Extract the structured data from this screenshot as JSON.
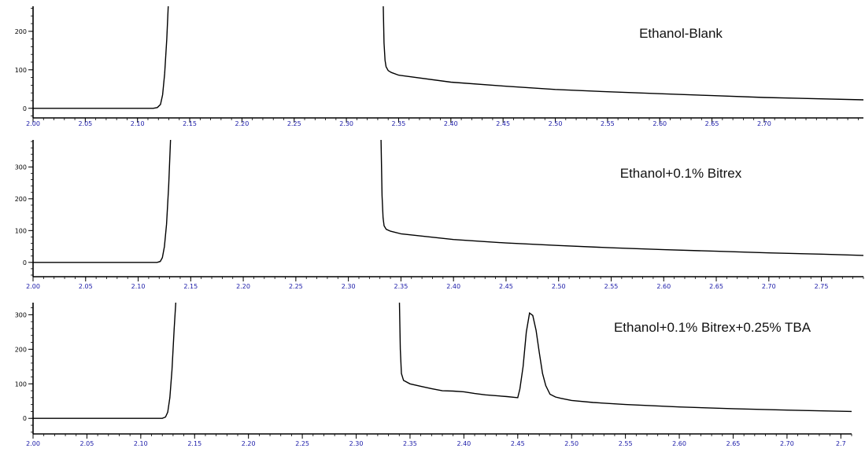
{
  "colors": {
    "trace": "#000000",
    "axis": "#000000",
    "x_tick_label": "#1a1aa8",
    "y_tick_label": "#000000",
    "background": "#ffffff"
  },
  "chart_data": [
    {
      "type": "line",
      "title": "Ethanol-Blank",
      "xlabel": "",
      "ylabel": "",
      "xlim": [
        2.0,
        2.795
      ],
      "ylim": [
        -25,
        265
      ],
      "x_ticks": [
        "2.00",
        "2.05",
        "2.10",
        "2.15",
        "2.20",
        "2.25",
        "2.30",
        "2.35",
        "2.40",
        "2.45",
        "2.50",
        "2.55",
        "2.60",
        "2.65",
        "2.70"
      ],
      "y_ticks": [
        "0",
        "100",
        "200"
      ],
      "grid": false,
      "series": [
        {
          "segments": [
            {
              "x": [
                2.0,
                2.115,
                2.119,
                2.122,
                2.124,
                2.126,
                2.128,
                2.13
              ],
              "y": [
                0,
                0,
                2,
                10,
                35,
                90,
                180,
                300
              ]
            },
            {
              "x": [
                2.335,
                2.336,
                2.337,
                2.338,
                2.34,
                2.343,
                2.35,
                2.4,
                2.45,
                2.5,
                2.55,
                2.6,
                2.65,
                2.7,
                2.795
              ],
              "y": [
                300,
                170,
                125,
                108,
                98,
                93,
                86,
                68,
                58,
                49,
                43,
                38,
                33,
                28,
                22
              ]
            }
          ]
        }
      ]
    },
    {
      "type": "line",
      "title": "Ethanol+0.1% Bitrex",
      "xlabel": "",
      "ylabel": "",
      "xlim": [
        2.0,
        2.79
      ],
      "ylim": [
        -45,
        385
      ],
      "x_ticks": [
        "2.00",
        "2.05",
        "2.10",
        "2.15",
        "2.20",
        "2.25",
        "2.30",
        "2.35",
        "2.40",
        "2.45",
        "2.50",
        "2.55",
        "2.60",
        "2.65",
        "2.70",
        "2.75"
      ],
      "y_ticks": [
        "0",
        "100",
        "200",
        "300"
      ],
      "grid": false,
      "series": [
        {
          "segments": [
            {
              "x": [
                2.0,
                2.118,
                2.121,
                2.123,
                2.125,
                2.127,
                2.129,
                2.131
              ],
              "y": [
                0,
                0,
                3,
                15,
                50,
                120,
                240,
                400
              ]
            },
            {
              "x": [
                2.331,
                2.332,
                2.333,
                2.334,
                2.336,
                2.34,
                2.35,
                2.4,
                2.45,
                2.5,
                2.55,
                2.6,
                2.65,
                2.7,
                2.75,
                2.79
              ],
              "y": [
                400,
                210,
                140,
                115,
                104,
                98,
                90,
                72,
                61,
                53,
                46,
                40,
                35,
                30,
                26,
                22
              ]
            }
          ]
        }
      ]
    },
    {
      "type": "line",
      "title": "Ethanol+0.1% Bitrex+0.25% TBA",
      "xlabel": "",
      "ylabel": "",
      "xlim": [
        2.0,
        2.76
      ],
      "ylim": [
        -45,
        335
      ],
      "x_ticks": [
        "2.00",
        "2.05",
        "2.10",
        "2.15",
        "2.20",
        "2.25",
        "2.30",
        "2.35",
        "2.40",
        "2.45",
        "2.50",
        "2.55",
        "2.60",
        "2.65",
        "2.70",
        "2.7"
      ],
      "y_ticks": [
        "0",
        "100",
        "200",
        "300"
      ],
      "grid": false,
      "series": [
        {
          "segments": [
            {
              "x": [
                2.0,
                2.12,
                2.123,
                2.125,
                2.127,
                2.129,
                2.131,
                2.133
              ],
              "y": [
                0,
                0,
                4,
                18,
                60,
                140,
                260,
                360
              ]
            },
            {
              "x": [
                2.34,
                2.341,
                2.342,
                2.344,
                2.35,
                2.36,
                2.37,
                2.38,
                2.39,
                2.4,
                2.41,
                2.42,
                2.44,
                2.45,
                2.452,
                2.455,
                2.458,
                2.461,
                2.464,
                2.467,
                2.47,
                2.473,
                2.476,
                2.48,
                2.485,
                2.49,
                2.5,
                2.52,
                2.55,
                2.6,
                2.65,
                2.7,
                2.76
              ],
              "y": [
                360,
                200,
                130,
                110,
                100,
                93,
                86,
                80,
                79,
                77,
                72,
                68,
                63,
                60,
                85,
                150,
                250,
                305,
                298,
                255,
                190,
                130,
                95,
                70,
                62,
                58,
                52,
                46,
                40,
                33,
                28,
                24,
                20
              ]
            }
          ]
        }
      ]
    }
  ]
}
